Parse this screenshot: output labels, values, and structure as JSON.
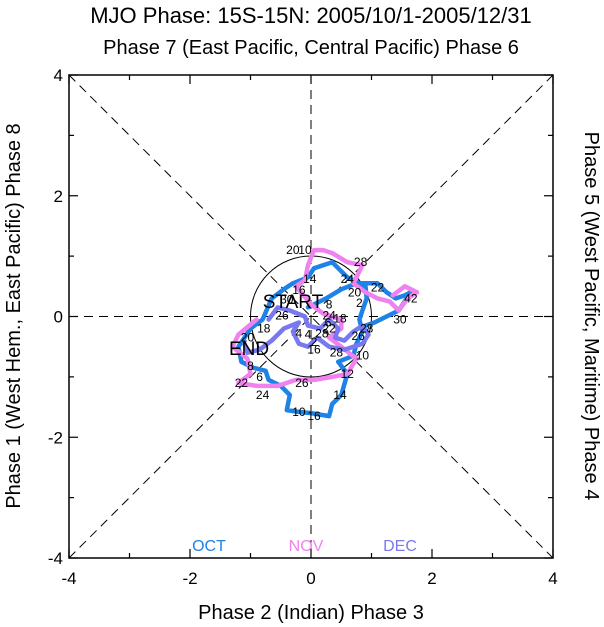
{
  "chart_data": {
    "type": "line",
    "title": "MJO Phase: 15S-15N: 2005/10/1-2005/12/31",
    "top_label": "Phase 7 (East Pacific, Central Pacific) Phase 6",
    "bottom_label": "Phase 2 (Indian) Phase 3",
    "left_label": "Phase 1 (West Hem., East Pacific) Phase 8",
    "right_label": "Phase 5 (West Pacific, Maritime) Phase 4",
    "xlim": [
      -4,
      4
    ],
    "ylim": [
      -4,
      4
    ],
    "xticks": [
      "-4",
      "-2",
      "0",
      "2",
      "4"
    ],
    "yticks": [
      "-4",
      "-2",
      "0",
      "2",
      "4"
    ],
    "circle_radius": 1,
    "start_label": "START",
    "end_label": "END",
    "legend": [
      {
        "name": "OCT",
        "color": "#1e82e6"
      },
      {
        "name": "NOV",
        "color": "#f082f0"
      },
      {
        "name": "DEC",
        "color": "#7878f0"
      }
    ],
    "series": [
      {
        "name": "OCT",
        "color": "#1e82e6",
        "points": [
          [
            -0.05,
            0.15
          ],
          [
            0.25,
            0.3
          ],
          [
            0.5,
            0.45
          ],
          [
            0.75,
            0.55
          ],
          [
            0.9,
            0.5
          ],
          [
            0.92,
            0.3
          ],
          [
            0.85,
            0.1
          ],
          [
            0.8,
            -0.05
          ],
          [
            0.85,
            -0.25
          ],
          [
            0.75,
            -0.45
          ],
          [
            0.7,
            -0.65
          ],
          [
            0.45,
            -0.75
          ],
          [
            0.6,
            -0.95
          ],
          [
            0.5,
            -1.3
          ],
          [
            0.35,
            -1.45
          ],
          [
            0.3,
            -1.65
          ],
          [
            0.0,
            -1.6
          ],
          [
            -0.2,
            -1.58
          ],
          [
            -0.4,
            -1.55
          ],
          [
            -0.35,
            -1.3
          ],
          [
            -0.5,
            -1.15
          ],
          [
            -0.7,
            -1.05
          ],
          [
            -0.75,
            -0.9
          ],
          [
            -0.95,
            -0.85
          ],
          [
            -1.15,
            -0.75
          ],
          [
            -1.2,
            -0.5
          ],
          [
            -1.0,
            -0.2
          ],
          [
            -0.8,
            -0.05
          ],
          [
            -0.65,
            0.3
          ],
          [
            -0.45,
            0.45
          ],
          [
            -0.3,
            0.55
          ],
          [
            -0.05,
            0.65
          ],
          [
            0.05,
            0.8
          ],
          [
            0.2,
            0.85
          ],
          [
            0.35,
            0.9
          ],
          [
            0.6,
            0.65
          ],
          [
            0.8,
            0.55
          ],
          [
            0.95,
            0.55
          ],
          [
            1.1,
            0.55
          ],
          [
            1.25,
            0.4
          ],
          [
            1.4,
            0.3
          ],
          [
            1.55,
            0.35
          ],
          [
            1.65,
            0.4
          ],
          [
            1.45,
            0.1
          ],
          [
            1.25,
            0.0
          ],
          [
            1.05,
            -0.1
          ],
          [
            0.9,
            -0.15
          ]
        ],
        "labels": [
          [
            "30",
            1.47,
            -0.05
          ],
          [
            "28",
            0.92,
            -0.2
          ],
          [
            "26",
            0.78,
            -0.32
          ],
          [
            "10",
            0.85,
            -0.65
          ],
          [
            "12",
            0.6,
            -0.95
          ],
          [
            "14",
            0.48,
            -1.3
          ],
          [
            "16",
            0.05,
            -1.65
          ],
          [
            "10",
            -0.2,
            -1.58
          ],
          [
            "24",
            -0.8,
            -1.3
          ],
          [
            "6",
            -0.85,
            -1.0
          ],
          [
            "8",
            -1.0,
            -0.82
          ],
          [
            "18",
            -0.78,
            -0.2
          ],
          [
            "24",
            0.6,
            0.62
          ],
          [
            "22",
            1.1,
            0.48
          ],
          [
            "20",
            0.72,
            0.4
          ]
        ]
      },
      {
        "name": "NOV",
        "color": "#f082f0",
        "points": [
          [
            -0.9,
            -0.05
          ],
          [
            -1.2,
            -0.3
          ],
          [
            -1.3,
            -0.5
          ],
          [
            -1.05,
            -0.7
          ],
          [
            -1.0,
            -0.95
          ],
          [
            -1.2,
            -1.1
          ],
          [
            -0.9,
            -1.15
          ],
          [
            -0.75,
            -1.15
          ],
          [
            -0.55,
            -1.15
          ],
          [
            -0.25,
            -1.05
          ],
          [
            0.05,
            -1.05
          ],
          [
            0.35,
            -1.0
          ],
          [
            0.6,
            -0.95
          ],
          [
            0.75,
            -0.7
          ],
          [
            0.5,
            -0.5
          ],
          [
            0.3,
            -0.35
          ],
          [
            0.5,
            -0.2
          ],
          [
            0.5,
            -0.05
          ],
          [
            0.2,
            0.05
          ],
          [
            0.0,
            0.2
          ],
          [
            -0.25,
            0.5
          ],
          [
            -0.1,
            0.6
          ],
          [
            -0.05,
            0.85
          ],
          [
            0.05,
            1.1
          ],
          [
            0.2,
            1.1
          ],
          [
            0.35,
            1.05
          ],
          [
            0.6,
            0.9
          ],
          [
            0.85,
            0.85
          ],
          [
            0.7,
            0.55
          ],
          [
            0.9,
            0.4
          ],
          [
            1.1,
            0.3
          ],
          [
            1.3,
            0.25
          ],
          [
            1.45,
            0.1
          ],
          [
            1.6,
            0.3
          ],
          [
            1.75,
            0.4
          ],
          [
            1.55,
            0.5
          ],
          [
            1.35,
            0.35
          ]
        ],
        "labels": [
          [
            "20",
            -1.05,
            -0.35
          ],
          [
            "22",
            -1.15,
            -1.1
          ],
          [
            "26",
            -0.15,
            -1.1
          ],
          [
            "28",
            0.42,
            -0.6
          ],
          [
            "20",
            -0.3,
            1.1
          ],
          [
            "28",
            0.82,
            0.9
          ],
          [
            "42",
            1.65,
            0.3
          ]
        ]
      },
      {
        "name": "DEC",
        "color": "#7878f0",
        "points": [
          [
            -0.7,
            -0.05
          ],
          [
            -0.55,
            0.15
          ],
          [
            -0.35,
            0.1
          ],
          [
            -0.1,
            0.0
          ],
          [
            -0.05,
            -0.15
          ],
          [
            0.15,
            -0.2
          ],
          [
            0.3,
            -0.05
          ],
          [
            0.45,
            -0.2
          ],
          [
            0.4,
            -0.35
          ],
          [
            0.55,
            -0.4
          ],
          [
            0.7,
            -0.25
          ],
          [
            0.85,
            -0.15
          ],
          [
            0.95,
            -0.3
          ],
          [
            0.85,
            -0.45
          ],
          [
            0.55,
            -0.55
          ],
          [
            0.3,
            -0.5
          ],
          [
            0.1,
            -0.35
          ],
          [
            -0.05,
            -0.5
          ],
          [
            -0.2,
            -0.45
          ],
          [
            -0.3,
            -0.25
          ],
          [
            -0.2,
            -0.1
          ],
          [
            -0.45,
            -0.2
          ],
          [
            -0.65,
            -0.4
          ],
          [
            -0.85,
            -0.55
          ],
          [
            -1.05,
            -0.6
          ],
          [
            -1.1,
            -0.45
          ]
        ],
        "labels": [
          [
            "26",
            -0.48,
            0.02
          ],
          [
            "6",
            0.28,
            -0.1
          ],
          [
            "4",
            -0.05,
            -0.3
          ],
          [
            "2",
            0.05,
            -0.42
          ],
          [
            "28",
            0.18,
            -0.28
          ],
          [
            "16",
            0.05,
            -0.55
          ],
          [
            "18",
            0.48,
            -0.03
          ],
          [
            "4",
            -0.2,
            -0.28
          ]
        ]
      }
    ],
    "extra_labels": [
      [
        "10",
        -0.1,
        1.1
      ],
      [
        "14",
        -0.02,
        0.62
      ],
      [
        "16",
        -0.2,
        0.44
      ],
      [
        "30",
        -0.4,
        0.28
      ],
      [
        "24",
        0.3,
        0.02
      ],
      [
        "2",
        0.8,
        0.22
      ],
      [
        "8",
        0.3,
        0.2
      ],
      [
        "22",
        0.3,
        -0.2
      ]
    ]
  }
}
